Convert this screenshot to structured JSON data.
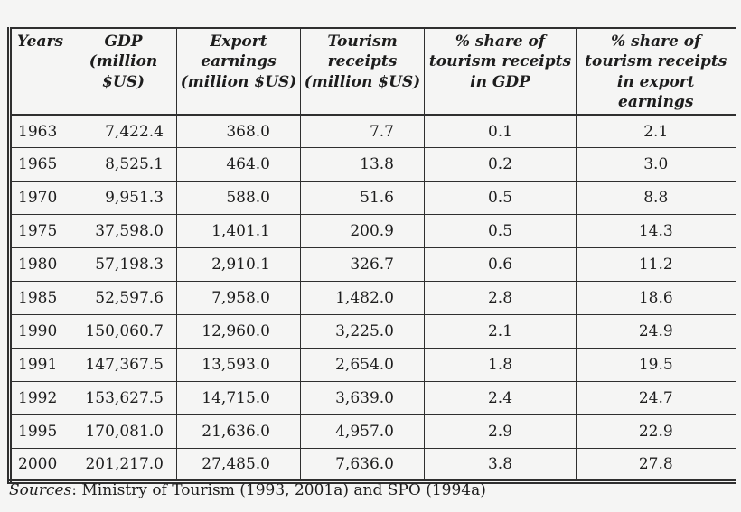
{
  "page": {
    "background_color": "#f5f5f4",
    "line_color": "#2f2f2f",
    "text_color": "#1d1d1d"
  },
  "table": {
    "columns": [
      "Years",
      "GDP\n(million\n$US)",
      "Export\nearnings\n(million $US)",
      "Tourism\nreceipts\n(million $US)",
      "% share of\ntourism receipts\nin GDP",
      "% share of\ntourism receipts\nin export earnings"
    ],
    "rows": [
      [
        "1963",
        "7,422.4",
        "368.0",
        "7.7",
        "0.1",
        "2.1"
      ],
      [
        "1965",
        "8,525.1",
        "464.0",
        "13.8",
        "0.2",
        "3.0"
      ],
      [
        "1970",
        "9,951.3",
        "588.0",
        "51.6",
        "0.5",
        "8.8"
      ],
      [
        "1975",
        "37,598.0",
        "1,401.1",
        "200.9",
        "0.5",
        "14.3"
      ],
      [
        "1980",
        "57,198.3",
        "2,910.1",
        "326.7",
        "0.6",
        "11.2"
      ],
      [
        "1985",
        "52,597.6",
        "7,958.0",
        "1,482.0",
        "2.8",
        "18.6"
      ],
      [
        "1990",
        "150,060.7",
        "12,960.0",
        "3,225.0",
        "2.1",
        "24.9"
      ],
      [
        "1991",
        "147,367.5",
        "13,593.0",
        "2,654.0",
        "1.8",
        "19.5"
      ],
      [
        "1992",
        "153,627.5",
        "14,715.0",
        "3,639.0",
        "2.4",
        "24.7"
      ],
      [
        "1995",
        "170,081.0",
        "21,636.0",
        "4,957.0",
        "2.9",
        "22.9"
      ],
      [
        "2000",
        "201,217.0",
        "27,485.0",
        "7,636.0",
        "3.8",
        "27.8"
      ]
    ]
  },
  "source": {
    "label": "Sources",
    "text": ": Ministry of Tourism (1993, 2001a) and SPO (1994a)"
  }
}
